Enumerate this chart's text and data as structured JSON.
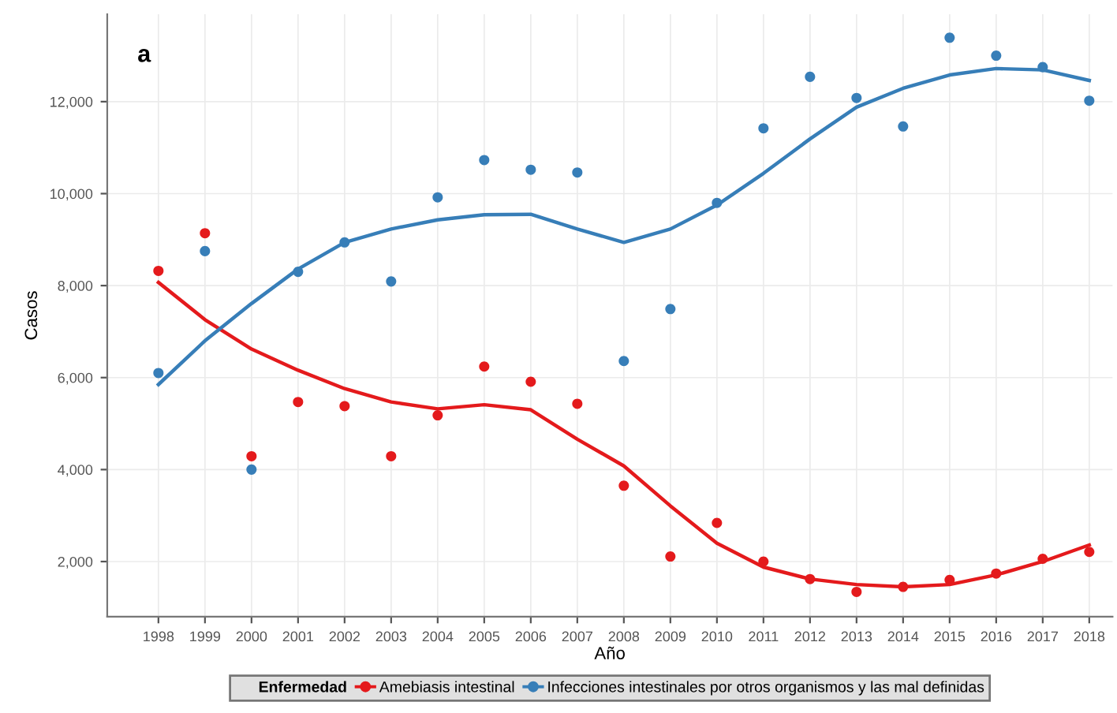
{
  "chart_data": {
    "type": "scatter",
    "title": "a",
    "xlabel": "Año",
    "ylabel": "Casos",
    "legend_title": "Enfermedad",
    "x": [
      1998,
      1999,
      2000,
      2001,
      2002,
      2003,
      2004,
      2005,
      2006,
      2007,
      2008,
      2009,
      2010,
      2011,
      2012,
      2013,
      2014,
      2015,
      2016,
      2017,
      2018
    ],
    "xlim": [
      1996.9,
      2018.5
    ],
    "xticks": [
      1998,
      1999,
      2000,
      2001,
      2002,
      2003,
      2004,
      2005,
      2006,
      2007,
      2008,
      2009,
      2010,
      2011,
      2012,
      2013,
      2014,
      2015,
      2016,
      2017,
      2018
    ],
    "ylim": [
      800,
      13900
    ],
    "yticks": [
      {
        "value": 2000,
        "label": "2,000"
      },
      {
        "value": 4000,
        "label": "4,000"
      },
      {
        "value": 6000,
        "label": "6,000"
      },
      {
        "value": 8000,
        "label": "8,000"
      },
      {
        "value": 10000,
        "label": "10,000"
      },
      {
        "value": 12000,
        "label": "12,000"
      }
    ],
    "grid": true,
    "legend": "bottom",
    "series": [
      {
        "name": "Amebiasis intestinal",
        "marker": "circle",
        "color": "#e41a1c",
        "values": [
          8320,
          9140,
          4290,
          5470,
          5380,
          4290,
          5180,
          6240,
          5910,
          5430,
          3650,
          2110,
          2840,
          2000,
          1620,
          1340,
          1450,
          1600,
          1740,
          2060,
          2210
        ]
      },
      {
        "name": "Infecciones intestinales por otros organismos y las mal definidas",
        "marker": "circle",
        "color": "#377eb8",
        "values": [
          6100,
          8750,
          4000,
          8300,
          8940,
          8090,
          9920,
          10730,
          10520,
          10460,
          6360,
          7490,
          9800,
          11420,
          12540,
          12080,
          11460,
          13390,
          13000,
          12750,
          12020
        ]
      },
      {
        "type": "line",
        "marker": "none",
        "color": "#e41a1c",
        "values": [
          8070,
          7260,
          6620,
          6160,
          5760,
          5470,
          5320,
          5410,
          5300,
          4660,
          4080,
          3210,
          2400,
          1880,
          1620,
          1500,
          1450,
          1500,
          1710,
          2000,
          2360
        ]
      },
      {
        "type": "line",
        "marker": "none",
        "color": "#377eb8",
        "values": [
          5850,
          6800,
          7610,
          8360,
          8940,
          9230,
          9430,
          9540,
          9550,
          9230,
          8940,
          9230,
          9750,
          10440,
          11190,
          11880,
          12290,
          12580,
          12720,
          12690,
          12460
        ]
      }
    ]
  }
}
